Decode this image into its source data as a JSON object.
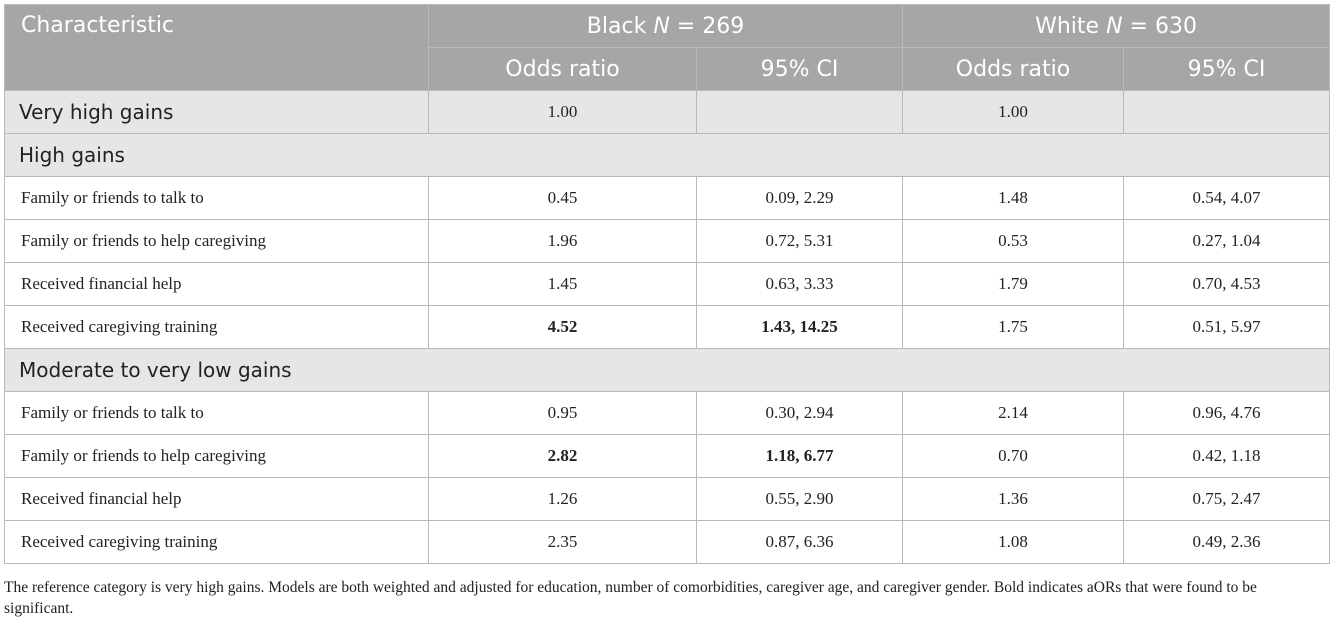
{
  "table": {
    "header": {
      "characteristic": "Characteristic",
      "black_group": "Black",
      "black_n_label": "N",
      "black_n_value": "= 269",
      "white_group": "White",
      "white_n_label": "N",
      "white_n_value": "= 630",
      "odds_ratio": "Odds ratio",
      "ci": "95% CI"
    },
    "reference": {
      "label": "Very high gains",
      "black_or": "1.00",
      "black_ci": "",
      "white_or": "1.00",
      "white_ci": ""
    },
    "sections": [
      {
        "title": "High gains",
        "rows": [
          {
            "label": "Family or friends to talk to",
            "black_or": "0.45",
            "black_ci": "0.09, 2.29",
            "white_or": "1.48",
            "white_ci": "0.54, 4.07",
            "black_bold": false
          },
          {
            "label": "Family or friends to help caregiving",
            "black_or": "1.96",
            "black_ci": "0.72, 5.31",
            "white_or": "0.53",
            "white_ci": "0.27, 1.04",
            "black_bold": false
          },
          {
            "label": "Received financial help",
            "black_or": "1.45",
            "black_ci": "0.63, 3.33",
            "white_or": "1.79",
            "white_ci": "0.70, 4.53",
            "black_bold": false
          },
          {
            "label": "Received caregiving training",
            "black_or": "4.52",
            "black_ci": "1.43, 14.25",
            "white_or": "1.75",
            "white_ci": "0.51, 5.97",
            "black_bold": true
          }
        ]
      },
      {
        "title": "Moderate to very low gains",
        "rows": [
          {
            "label": "Family or friends to talk to",
            "black_or": "0.95",
            "black_ci": "0.30, 2.94",
            "white_or": "2.14",
            "white_ci": "0.96, 4.76",
            "black_bold": false
          },
          {
            "label": "Family or friends to help caregiving",
            "black_or": "2.82",
            "black_ci": "1.18, 6.77",
            "white_or": "0.70",
            "white_ci": "0.42, 1.18",
            "black_bold": true
          },
          {
            "label": "Received financial help",
            "black_or": "1.26",
            "black_ci": "0.55, 2.90",
            "white_or": "1.36",
            "white_ci": "0.75, 2.47",
            "black_bold": false
          },
          {
            "label": "Received caregiving training",
            "black_or": "2.35",
            "black_ci": "0.87, 6.36",
            "white_or": "1.08",
            "white_ci": "0.49, 2.36",
            "black_bold": false
          }
        ]
      }
    ]
  },
  "footnote": "The reference category is very high gains. Models are both weighted and adjusted for education, number of comorbidities, caregiver age, and caregiver gender. Bold indicates aORs that were found to be significant.",
  "colors": {
    "header_bg": "#a6a6a6",
    "section_bg": "#e6e6e6",
    "border": "#b9b9b9"
  }
}
